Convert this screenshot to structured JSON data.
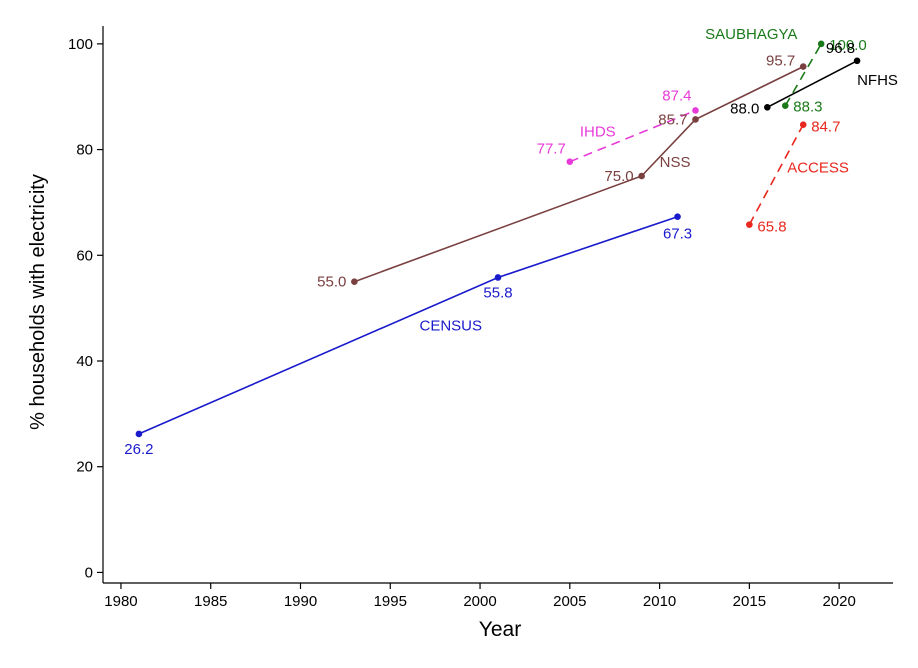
{
  "chart_data": {
    "type": "line",
    "title": "",
    "xlabel": "Year",
    "ylabel": "% households with electricity",
    "xlim": [
      1979,
      2023
    ],
    "ylim": [
      -2,
      103
    ],
    "xticks": [
      1980,
      1985,
      1990,
      1995,
      2000,
      2005,
      2010,
      2015,
      2020
    ],
    "yticks": [
      0,
      20,
      40,
      60,
      80,
      100
    ],
    "grid": false,
    "series": [
      {
        "name": "CENSUS",
        "color": "#1a1acd",
        "dash": "solid",
        "points": [
          {
            "x": 1981,
            "y": 26.2,
            "label": "26.2"
          },
          {
            "x": 2001,
            "y": 55.8,
            "label": "55.8"
          },
          {
            "x": 2011,
            "y": 67.3,
            "label": "67.3"
          }
        ]
      },
      {
        "name": "NSS",
        "color": "#7a4040",
        "dash": "solid",
        "points": [
          {
            "x": 1993,
            "y": 55.0,
            "label": "55.0"
          },
          {
            "x": 2009,
            "y": 75.0,
            "label": "75.0"
          },
          {
            "x": 2012,
            "y": 85.7,
            "label": "85.7"
          },
          {
            "x": 2018,
            "y": 95.7,
            "label": "95.7"
          }
        ]
      },
      {
        "name": "IHDS",
        "color": "#e83ad8",
        "dash": "dashed",
        "points": [
          {
            "x": 2005,
            "y": 77.7,
            "label": "77.7"
          },
          {
            "x": 2012,
            "y": 87.4,
            "label": "87.4"
          }
        ]
      },
      {
        "name": "ACCESS",
        "color": "#e8281e",
        "dash": "dashed",
        "points": [
          {
            "x": 2015,
            "y": 65.8,
            "label": "65.8"
          },
          {
            "x": 2018,
            "y": 84.7,
            "label": "84.7"
          }
        ]
      },
      {
        "name": "SAUBHAGYA",
        "color": "#1a7a1a",
        "dash": "dashed",
        "points": [
          {
            "x": 2017,
            "y": 88.3,
            "label": "88.3"
          },
          {
            "x": 2019,
            "y": 100.0,
            "label": "100.0"
          }
        ]
      },
      {
        "name": "NFHS",
        "color": "#000000",
        "dash": "solid",
        "points": [
          {
            "x": 2016,
            "y": 88.0,
            "label": "88.0"
          },
          {
            "x": 2021,
            "y": 96.8,
            "label": "96.8"
          }
        ]
      }
    ]
  }
}
